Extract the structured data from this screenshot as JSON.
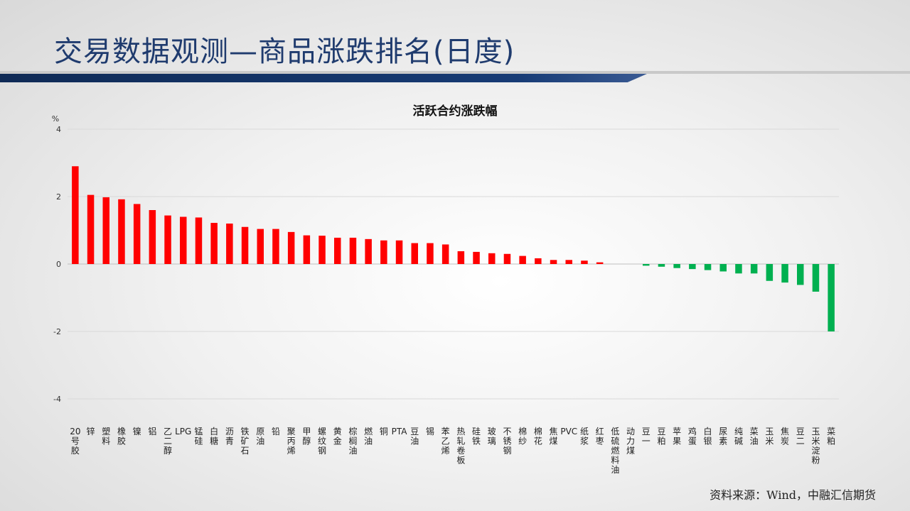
{
  "header": {
    "title": "交易数据观测—商品涨跌排名(日度)"
  },
  "source": "资料来源：Wind，中融汇信期货",
  "colors": {
    "up": "#ff0000",
    "down": "#00b050",
    "title": "#1f3b6e",
    "bar": "#0f2a55"
  },
  "chart_data": {
    "type": "bar",
    "title": "活跃合约涨跌幅",
    "ylabel": "%",
    "ylim": [
      -4,
      4
    ],
    "yticks": [
      4,
      2,
      0,
      -2,
      -4
    ],
    "grid": true,
    "categories": [
      "20号胶",
      "锌",
      "塑料",
      "橡胶",
      "镍",
      "铝",
      "乙二醇",
      "LPG",
      "锰硅",
      "白糖",
      "沥青",
      "铁矿石",
      "原油",
      "铅",
      "聚丙烯",
      "甲醇",
      "螺纹钢",
      "黄金",
      "棕榈油",
      "燃油",
      "铜",
      "PTA",
      "豆油",
      "锡",
      "苯乙烯",
      "热轧卷板",
      "硅铁",
      "玻璃",
      "不锈钢",
      "棉纱",
      "棉花",
      "焦煤",
      "PVC",
      "纸浆",
      "红枣",
      "低硫燃料油",
      "动力煤",
      "豆一",
      "豆粕",
      "苹果",
      "鸡蛋",
      "白银",
      "尿素",
      "纯碱",
      "菜油",
      "玉米",
      "焦炭",
      "豆二",
      "玉米淀粉",
      "菜粕"
    ],
    "values": [
      2.9,
      2.05,
      1.98,
      1.92,
      1.78,
      1.6,
      1.44,
      1.4,
      1.38,
      1.22,
      1.2,
      1.1,
      1.04,
      1.04,
      0.95,
      0.85,
      0.84,
      0.78,
      0.78,
      0.74,
      0.7,
      0.7,
      0.62,
      0.62,
      0.58,
      0.38,
      0.36,
      0.32,
      0.3,
      0.24,
      0.17,
      0.12,
      0.12,
      0.1,
      0.05,
      0.0,
      0.0,
      -0.05,
      -0.08,
      -0.12,
      -0.15,
      -0.18,
      -0.22,
      -0.28,
      -0.28,
      -0.5,
      -0.55,
      -0.62,
      -0.82,
      -2.0
    ]
  }
}
